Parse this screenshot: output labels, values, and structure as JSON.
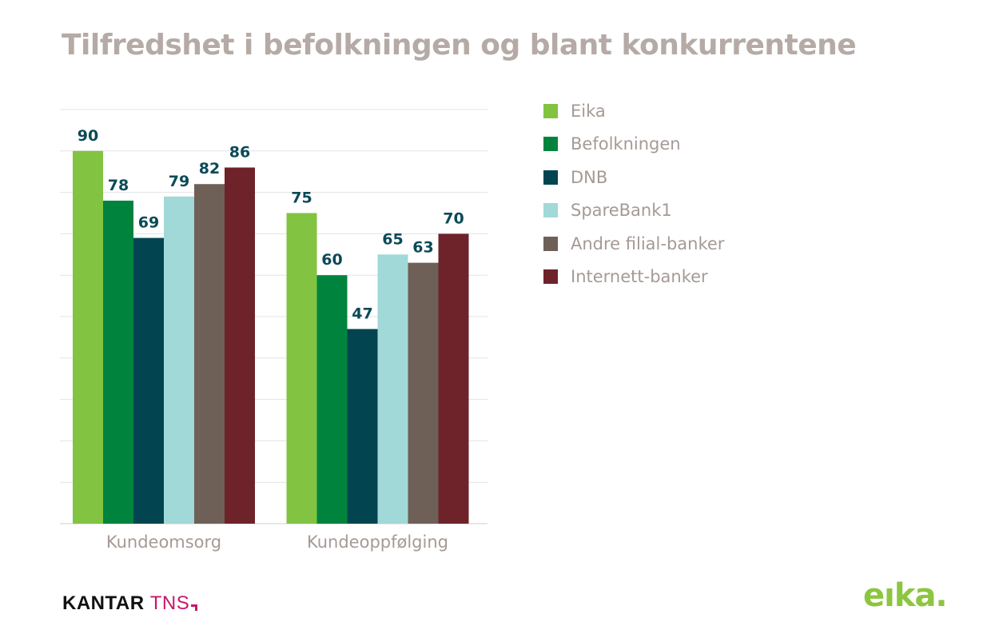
{
  "title": "Tilfredshet i befolkningen og blant konkurrentene",
  "chart_data": {
    "type": "bar",
    "title": "Tilfredshet i befolkningen og blant konkurrentene",
    "categories": [
      "Kundeomsorg",
      "Kundeoppfølging"
    ],
    "series": [
      {
        "name": "Eika",
        "values": [
          90,
          75
        ],
        "color": "#82c341"
      },
      {
        "name": "Befolkningen",
        "values": [
          78,
          60
        ],
        "color": "#00843d"
      },
      {
        "name": "DNB",
        "values": [
          69,
          47
        ],
        "color": "#024550"
      },
      {
        "name": "SpareBank1",
        "values": [
          79,
          65
        ],
        "color": "#a0d9d8"
      },
      {
        "name": "Andre filial-banker",
        "values": [
          82,
          63
        ],
        "color": "#6f6057"
      },
      {
        "name": "Internett-banker",
        "values": [
          86,
          70
        ],
        "color": "#6e232a"
      }
    ],
    "ylim": [
      0,
      100
    ],
    "grid": true,
    "legend_position": "right",
    "label_color": "#0b4a57"
  },
  "footer": {
    "kantar_bold": "KANTAR",
    "kantar_light": "TNS",
    "eika_logo": "eıka."
  }
}
